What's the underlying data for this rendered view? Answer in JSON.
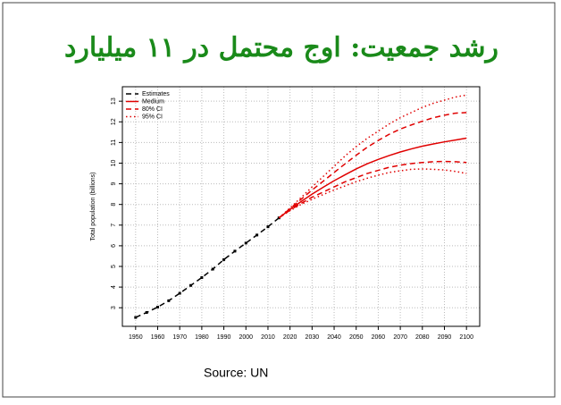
{
  "title": "رشد جمعیت: اوج محتمل در ۱۱ میلیارد",
  "source": "Source: UN",
  "chart_data": {
    "type": "line",
    "ylabel": "Total population (billions)",
    "xlim": [
      1944,
      2106
    ],
    "ylim": [
      2.1,
      13.7
    ],
    "xticks": [
      1950,
      1960,
      1970,
      1980,
      1990,
      2000,
      2010,
      2020,
      2030,
      2040,
      2050,
      2060,
      2070,
      2080,
      2090,
      2100
    ],
    "yticks": [
      3,
      4,
      5,
      6,
      7,
      8,
      9,
      10,
      11,
      12,
      13
    ],
    "grid": true,
    "legend": "top-left",
    "series": [
      {
        "name": "Estimates",
        "color": "#000000",
        "dash": "dashed",
        "markers": true,
        "x": [
          1950,
          1955,
          1960,
          1965,
          1970,
          1975,
          1980,
          1985,
          1990,
          1995,
          2000,
          2005,
          2010,
          2015
        ],
        "values": [
          2.53,
          2.77,
          3.03,
          3.34,
          3.7,
          4.08,
          4.46,
          4.87,
          5.33,
          5.74,
          6.13,
          6.52,
          6.92,
          7.35
        ]
      },
      {
        "name": "Medium",
        "color": "#e00000",
        "dash": "solid",
        "x": [
          2015,
          2020,
          2025,
          2030,
          2035,
          2040,
          2045,
          2050,
          2055,
          2060,
          2065,
          2070,
          2075,
          2080,
          2085,
          2090,
          2095,
          2100
        ],
        "values": [
          7.35,
          7.76,
          8.14,
          8.5,
          8.83,
          9.15,
          9.44,
          9.72,
          9.97,
          10.18,
          10.37,
          10.54,
          10.69,
          10.82,
          10.93,
          11.03,
          11.12,
          11.21
        ]
      },
      {
        "name": "80% CI",
        "color": "#e00000",
        "dash": "dashed",
        "x": [
          2015,
          2020,
          2025,
          2030,
          2035,
          2040,
          2045,
          2050,
          2055,
          2060,
          2065,
          2070,
          2075,
          2080,
          2085,
          2090,
          2095,
          2100
        ],
        "lower": [
          7.35,
          7.72,
          8.05,
          8.35,
          8.6,
          8.85,
          9.1,
          9.3,
          9.5,
          9.65,
          9.8,
          9.9,
          9.98,
          10.03,
          10.07,
          10.08,
          10.07,
          10.03
        ],
        "upper": [
          7.35,
          7.8,
          8.25,
          8.7,
          9.12,
          9.55,
          9.97,
          10.38,
          10.77,
          11.1,
          11.4,
          11.65,
          11.85,
          12.03,
          12.2,
          12.32,
          12.42,
          12.45
        ]
      },
      {
        "name": "95% CI",
        "color": "#e00000",
        "dash": "dotted",
        "x": [
          2015,
          2020,
          2025,
          2030,
          2035,
          2040,
          2045,
          2050,
          2055,
          2060,
          2065,
          2070,
          2075,
          2080,
          2085,
          2090,
          2095,
          2100
        ],
        "lower": [
          7.35,
          7.7,
          8.0,
          8.25,
          8.48,
          8.7,
          8.9,
          9.1,
          9.27,
          9.42,
          9.55,
          9.63,
          9.7,
          9.72,
          9.7,
          9.67,
          9.6,
          9.5
        ],
        "upper": [
          7.35,
          7.83,
          8.33,
          8.85,
          9.35,
          9.85,
          10.35,
          10.8,
          11.2,
          11.55,
          11.9,
          12.2,
          12.45,
          12.7,
          12.9,
          13.05,
          13.2,
          13.3
        ]
      }
    ]
  }
}
